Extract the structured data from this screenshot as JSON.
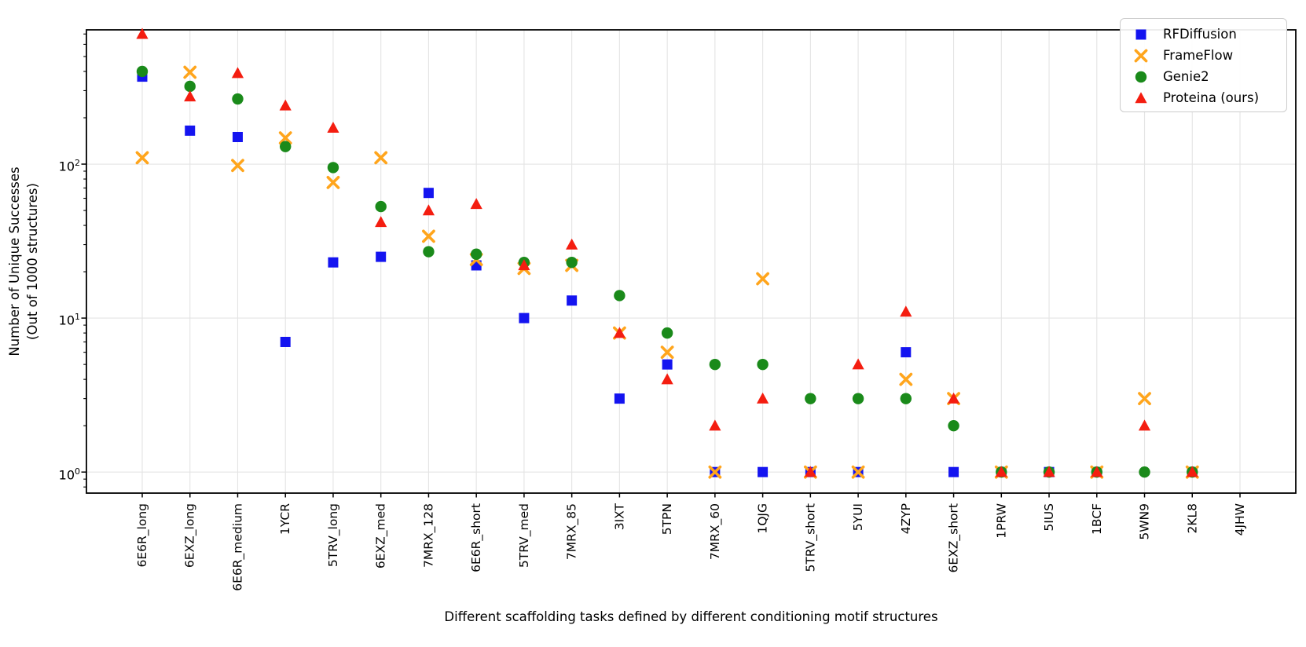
{
  "figure": {
    "ylabel_line1": "Number of Unique Successes",
    "ylabel_line2": "(Out of 1000 structures)",
    "xlabel": "Different scaffolding tasks defined by different conditioning motif structures",
    "yticks": [
      {
        "base": "10",
        "exp": "0",
        "value": 1
      },
      {
        "base": "10",
        "exp": "1",
        "value": 10
      },
      {
        "base": "10",
        "exp": "2",
        "value": 100
      }
    ]
  },
  "legend": {
    "items": [
      {
        "label": "RFDiffusion",
        "marker": "square",
        "color": "#1414f0"
      },
      {
        "label": "FrameFlow",
        "marker": "x",
        "color": "#ffa51c"
      },
      {
        "label": "Genie2",
        "marker": "circle",
        "color": "#1a8a1a"
      },
      {
        "label": "Proteina (ours)",
        "marker": "triangle",
        "color": "#f41d10"
      }
    ]
  },
  "chart_data": {
    "type": "scatter",
    "yscale": "log",
    "ylim": [
      0.73,
      745
    ],
    "grid": true,
    "legend_position": "upper right",
    "categories": [
      "6E6R_long",
      "6EXZ_long",
      "6E6R_medium",
      "1YCR",
      "5TRV_long",
      "6EXZ_med",
      "7MRX_128",
      "6E6R_short",
      "5TRV_med",
      "7MRX_85",
      "3IXT",
      "5TPN",
      "7MRX_60",
      "1QJG",
      "5TRV_short",
      "5YUI",
      "4ZYP",
      "6EXZ_short",
      "1PRW",
      "5IUS",
      "1BCF",
      "5WN9",
      "2KL8",
      "4JHW"
    ],
    "series": [
      {
        "name": "RFDiffusion",
        "marker": "square",
        "color": "#1414f0",
        "values": [
          370,
          165,
          150,
          7,
          23,
          25,
          65,
          22,
          10,
          13,
          3,
          5,
          1,
          1,
          1,
          1,
          6,
          1,
          1,
          1,
          1,
          null,
          1,
          null
        ]
      },
      {
        "name": "FrameFlow",
        "marker": "x",
        "color": "#ffa51c",
        "values": [
          110,
          395,
          98,
          148,
          76,
          110,
          34,
          24,
          21,
          22,
          8,
          6,
          1,
          18,
          1,
          1,
          4,
          3,
          1,
          null,
          1,
          3,
          1,
          null
        ]
      },
      {
        "name": "Genie2",
        "marker": "circle",
        "color": "#1a8a1a",
        "values": [
          400,
          320,
          265,
          130,
          95,
          53,
          27,
          26,
          23,
          23,
          14,
          8,
          5,
          5,
          3,
          3,
          3,
          2,
          1,
          1,
          1,
          1,
          1,
          null
        ]
      },
      {
        "name": "Proteina (ours)",
        "marker": "triangle",
        "color": "#f41d10",
        "values": [
          700,
          275,
          390,
          240,
          172,
          42,
          50,
          55,
          22,
          30,
          8,
          4,
          2,
          3,
          1,
          5,
          11,
          3,
          1,
          1,
          1,
          2,
          1,
          null
        ]
      }
    ]
  }
}
